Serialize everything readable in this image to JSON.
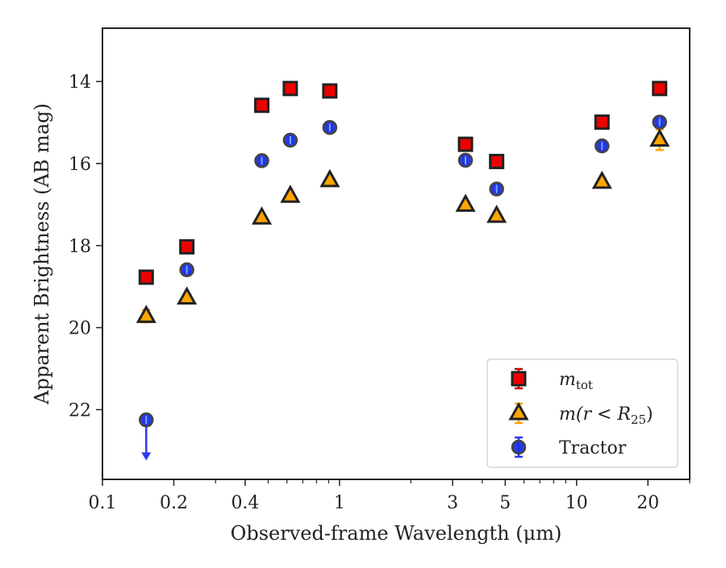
{
  "chart_data": {
    "type": "scatter",
    "title": "",
    "xlabel": "Observed-frame Wavelength (μm)",
    "ylabel": "Apparent Brightness (AB mag)",
    "x_scale": "log",
    "xlim": [
      0.1,
      30
    ],
    "ylim": [
      23.7,
      12.7
    ],
    "y_inverted": true,
    "grid": false,
    "legend_position": "lower-right",
    "x_ticks": [
      {
        "value": 0.1,
        "label": "0.1"
      },
      {
        "value": 0.2,
        "label": "0.2"
      },
      {
        "value": 0.4,
        "label": "0.4"
      },
      {
        "value": 1,
        "label": "1"
      },
      {
        "value": 3,
        "label": "3"
      },
      {
        "value": 5,
        "label": "5"
      },
      {
        "value": 10,
        "label": "10"
      },
      {
        "value": 20,
        "label": "20"
      }
    ],
    "x_minor_ticks": [
      0.3,
      0.5,
      0.6,
      0.7,
      0.8,
      0.9,
      2,
      4,
      6,
      7,
      8,
      9,
      30
    ],
    "y_ticks": [
      {
        "value": 14,
        "label": "14"
      },
      {
        "value": 16,
        "label": "16"
      },
      {
        "value": 18,
        "label": "18"
      },
      {
        "value": 20,
        "label": "20"
      },
      {
        "value": 22,
        "label": "22"
      }
    ],
    "series": [
      {
        "name": "m_tot",
        "legend_label": {
          "base": "m",
          "sub": "tot"
        },
        "marker": "square",
        "color": "#ee0000",
        "edge_color": "#222222",
        "error_color": "#cc0000",
        "x": [
          0.153,
          0.227,
          0.47,
          0.62,
          0.91,
          3.4,
          4.6,
          12.8,
          22.4
        ],
        "y": [
          18.77,
          18.03,
          14.58,
          14.17,
          14.23,
          15.53,
          15.95,
          14.99,
          14.17
        ],
        "yerr": [
          0.05,
          0.05,
          0.02,
          0.02,
          0.02,
          0.02,
          0.02,
          0.02,
          0.05
        ]
      },
      {
        "name": "m(r < R25)",
        "legend_label": {
          "base": "m(r < R",
          "sub": "25",
          "end": ")"
        },
        "marker": "triangle",
        "color": "#ffa500",
        "edge_color": "#222222",
        "error_color": "#ffa500",
        "x": [
          0.153,
          0.227,
          0.47,
          0.62,
          0.91,
          3.4,
          4.6,
          12.8,
          22.4
        ],
        "y": [
          19.72,
          19.27,
          17.32,
          16.79,
          16.41,
          17.01,
          17.28,
          16.45,
          15.42
        ],
        "yerr": [
          0.15,
          0.08,
          0.03,
          0.03,
          0.03,
          0.03,
          0.03,
          0.1,
          0.25
        ]
      },
      {
        "name": "Tractor",
        "marker": "circle",
        "color": "#1f2fe0",
        "edge_color": "#444444",
        "error_color": "#2b3bf0",
        "x": [
          0.153,
          0.227,
          0.47,
          0.62,
          0.91,
          3.4,
          4.6,
          12.8,
          22.4
        ],
        "y": [
          22.25,
          18.59,
          15.93,
          15.43,
          15.12,
          15.92,
          16.62,
          15.57,
          14.99
        ],
        "yerr": [
          0.05,
          0.05,
          0.02,
          0.02,
          0.02,
          0.02,
          0.02,
          0.03,
          0.05
        ],
        "upper_limit_index": 0,
        "upper_limit_to": 23.2
      }
    ]
  }
}
